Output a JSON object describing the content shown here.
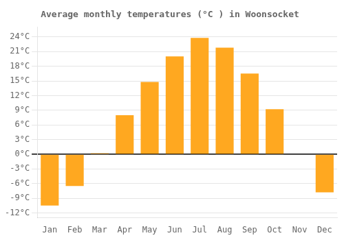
{
  "chart_data": {
    "type": "bar",
    "title": "Average monthly temperatures (°C ) in Woonsocket",
    "categories": [
      "Jan",
      "Feb",
      "Mar",
      "Apr",
      "May",
      "Jun",
      "Jul",
      "Aug",
      "Sep",
      "Oct",
      "Nov",
      "Dec"
    ],
    "values": [
      -10.5,
      -6.5,
      0.2,
      8.0,
      14.8,
      20.0,
      23.8,
      21.8,
      16.5,
      9.2,
      0.1,
      -7.8
    ],
    "color": "#FFA820",
    "ylim": [
      -13,
      26
    ],
    "yticks": [
      {
        "value": -12,
        "label": "-12°C"
      },
      {
        "value": -9,
        "label": "-9°C"
      },
      {
        "value": -6,
        "label": "-6°C"
      },
      {
        "value": -3,
        "label": "-3°C"
      },
      {
        "value": 0,
        "label": "0°C"
      },
      {
        "value": 3,
        "label": "3°C"
      },
      {
        "value": 6,
        "label": "6°C"
      },
      {
        "value": 9,
        "label": "9°C"
      },
      {
        "value": 12,
        "label": "12°C"
      },
      {
        "value": 15,
        "label": "15°C"
      },
      {
        "value": 18,
        "label": "18°C"
      },
      {
        "value": 21,
        "label": "21°C"
      },
      {
        "value": 24,
        "label": "24°C"
      }
    ],
    "grid": true
  }
}
